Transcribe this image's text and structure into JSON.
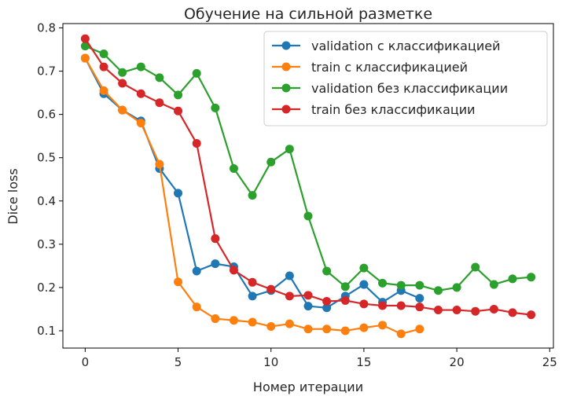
{
  "chart_data": {
    "type": "line",
    "title": "Обучение на сильной разметке",
    "xlabel": "Номер итерации",
    "ylabel": "Dice loss",
    "xlim": [
      -1.2,
      25.2
    ],
    "ylim": [
      0.06,
      0.81
    ],
    "xticks": [
      0,
      5,
      10,
      15,
      20,
      25
    ],
    "yticks": [
      0.1,
      0.2,
      0.3,
      0.4,
      0.5,
      0.6,
      0.7,
      0.8
    ],
    "grid": false,
    "legend_position": "top-right",
    "series": [
      {
        "name": "validation с классификацией",
        "color": "#1f77b4",
        "x": [
          0,
          1,
          2,
          3,
          4,
          5,
          6,
          7,
          8,
          9,
          10,
          11,
          12,
          13,
          14,
          15,
          16,
          17,
          18
        ],
        "values": [
          0.73,
          0.648,
          0.61,
          0.585,
          0.475,
          0.418,
          0.238,
          0.255,
          0.248,
          0.18,
          0.193,
          0.227,
          0.157,
          0.153,
          0.18,
          0.207,
          0.166,
          0.193,
          0.175
        ]
      },
      {
        "name": "train с классификацией",
        "color": "#ff7f0e",
        "x": [
          0,
          1,
          2,
          3,
          4,
          5,
          6,
          7,
          8,
          9,
          10,
          11,
          12,
          13,
          14,
          15,
          16,
          17,
          18
        ],
        "values": [
          0.73,
          0.655,
          0.61,
          0.58,
          0.485,
          0.213,
          0.155,
          0.128,
          0.124,
          0.12,
          0.11,
          0.116,
          0.104,
          0.104,
          0.1,
          0.107,
          0.113,
          0.093,
          0.104
        ]
      },
      {
        "name": "validation без классификации",
        "color": "#2ca02c",
        "x": [
          0,
          1,
          2,
          3,
          4,
          5,
          6,
          7,
          8,
          9,
          10,
          11,
          12,
          13,
          14,
          15,
          16,
          17,
          18,
          19,
          20,
          21,
          22,
          23,
          24
        ],
        "values": [
          0.758,
          0.74,
          0.697,
          0.71,
          0.685,
          0.645,
          0.695,
          0.615,
          0.475,
          0.413,
          0.49,
          0.52,
          0.365,
          0.238,
          0.202,
          0.245,
          0.21,
          0.205,
          0.205,
          0.193,
          0.2,
          0.247,
          0.207,
          0.22,
          0.224
        ]
      },
      {
        "name": "train без классификации",
        "color": "#d62728",
        "x": [
          0,
          1,
          2,
          3,
          4,
          5,
          6,
          7,
          8,
          9,
          10,
          11,
          12,
          13,
          14,
          15,
          16,
          17,
          18,
          19,
          20,
          21,
          22,
          23,
          24
        ],
        "values": [
          0.775,
          0.71,
          0.672,
          0.648,
          0.627,
          0.608,
          0.533,
          0.313,
          0.24,
          0.212,
          0.196,
          0.18,
          0.182,
          0.168,
          0.17,
          0.162,
          0.158,
          0.158,
          0.155,
          0.148,
          0.148,
          0.145,
          0.15,
          0.142,
          0.137
        ]
      }
    ]
  }
}
